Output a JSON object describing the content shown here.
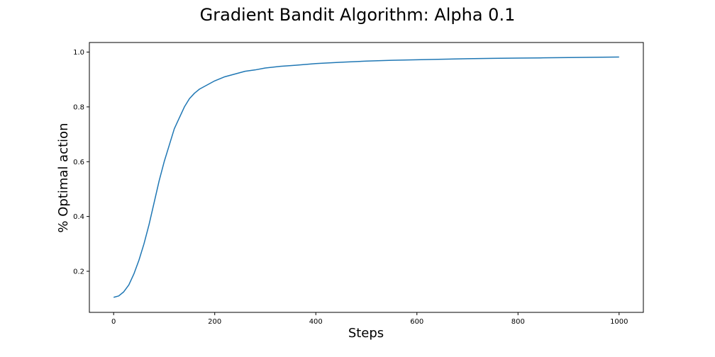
{
  "chart_data": {
    "type": "line",
    "title": "Gradient Bandit Algorithm: Alpha 0.1",
    "xlabel": "Steps",
    "ylabel": "% Optimal action",
    "xlim": [
      -48,
      1048
    ],
    "ylim": [
      0.05,
      1.035
    ],
    "x_ticks": [
      0,
      200,
      400,
      600,
      800,
      1000
    ],
    "x_tick_labels": [
      "0",
      "200",
      "400",
      "600",
      "800",
      "1000"
    ],
    "y_ticks": [
      0.2,
      0.4,
      0.6,
      0.8,
      1.0
    ],
    "y_tick_labels": [
      "0.2",
      "0.4",
      "0.6",
      "0.8",
      "1.0"
    ],
    "grid": false,
    "legend": "none",
    "series": [
      {
        "color": "#1f77b4",
        "x": [
          0,
          10,
          20,
          30,
          40,
          50,
          60,
          70,
          80,
          90,
          100,
          110,
          120,
          130,
          140,
          150,
          160,
          170,
          180,
          190,
          200,
          220,
          240,
          260,
          280,
          300,
          330,
          360,
          400,
          450,
          500,
          550,
          600,
          650,
          700,
          750,
          800,
          850,
          900,
          950,
          1000
        ],
        "y": [
          0.105,
          0.11,
          0.125,
          0.15,
          0.19,
          0.24,
          0.3,
          0.37,
          0.45,
          0.53,
          0.6,
          0.66,
          0.72,
          0.76,
          0.8,
          0.83,
          0.85,
          0.865,
          0.875,
          0.885,
          0.895,
          0.91,
          0.92,
          0.93,
          0.935,
          0.942,
          0.948,
          0.952,
          0.958,
          0.963,
          0.967,
          0.97,
          0.972,
          0.974,
          0.976,
          0.977,
          0.978,
          0.979,
          0.98,
          0.981,
          0.982
        ]
      }
    ]
  }
}
